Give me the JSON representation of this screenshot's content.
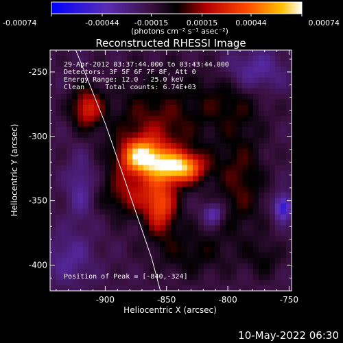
{
  "chart_data": {
    "type": "heatmap",
    "title": "Reconstructed RHESSI Image",
    "xlabel": "Heliocentric X (arcsec)",
    "ylabel": "Heliocentric Y (arcsec)",
    "xlim": [
      -945,
      -748
    ],
    "ylim": [
      -420,
      -233
    ],
    "xticks": [
      -900,
      -850,
      -800,
      -750
    ],
    "xtick_labels": [
      "-900",
      "-850",
      "-800",
      "-750"
    ],
    "yticks": [
      -250,
      -300,
      -350,
      -400
    ],
    "ytick_labels": [
      "-250",
      "-300",
      "-350",
      "-400"
    ],
    "colorbar": {
      "ticks": [
        -0.00074,
        -0.00044,
        -0.00015,
        0.00015,
        0.00044,
        0.00074
      ],
      "tick_labels": [
        "-0.00074",
        "-0.00044",
        "-0.00015",
        "0.00015",
        "0.00044",
        "0.00074"
      ],
      "unit_label": "(photons cm⁻² s⁻¹ asec⁻²)",
      "range": [
        -0.00074,
        0.00074
      ]
    },
    "annotations": [
      "29-Apr-2012 03:37:44.000 to 03:43:44.000",
      "Detectors: 3F 5F 6F 7F 8F, Att 0",
      "Energy Range: 12.0 - 25.0 keV",
      "Clean     Total counts: 6.74E+03"
    ],
    "peak_label": "Position of Peak = [-840,-324]",
    "peak": [
      -840,
      -324
    ],
    "blobs": [
      {
        "x": -915,
        "y": -278,
        "sx": 9,
        "sy": 11,
        "v": 0.00042
      },
      {
        "x": -870,
        "y": -316,
        "sx": 12,
        "sy": 9,
        "v": 0.0007
      },
      {
        "x": -840,
        "y": -324,
        "sx": 14,
        "sy": 8,
        "v": 0.00074
      },
      {
        "x": -860,
        "y": -300,
        "sx": 25,
        "sy": 30,
        "v": 0.00028
      },
      {
        "x": -855,
        "y": -355,
        "sx": 9,
        "sy": 15,
        "v": 0.00045
      },
      {
        "x": -880,
        "y": -345,
        "sx": 16,
        "sy": 12,
        "v": 0.00026
      },
      {
        "x": -790,
        "y": -335,
        "sx": 14,
        "sy": 30,
        "v": 0.00022
      },
      {
        "x": -800,
        "y": -270,
        "sx": 22,
        "sy": 18,
        "v": 0.00018
      },
      {
        "x": -830,
        "y": -390,
        "sx": 22,
        "sy": 14,
        "v": 0.00016
      },
      {
        "x": -770,
        "y": -395,
        "sx": 10,
        "sy": 10,
        "v": 0.00014
      },
      {
        "x": -920,
        "y": -340,
        "sx": 8,
        "sy": 18,
        "v": -0.0002
      },
      {
        "x": -780,
        "y": -250,
        "sx": 18,
        "sy": 12,
        "v": -0.00025
      },
      {
        "x": -930,
        "y": -395,
        "sx": 14,
        "sy": 14,
        "v": -0.00018
      },
      {
        "x": -812,
        "y": -360,
        "sx": 6,
        "sy": 6,
        "v": -0.0003
      },
      {
        "x": -755,
        "y": -355,
        "sx": 5,
        "sy": 7,
        "v": -0.00044
      }
    ],
    "limb_line": [
      [
        -924,
        -233
      ],
      [
        -900,
        -290
      ],
      [
        -880,
        -345
      ],
      [
        -862,
        -395
      ],
      [
        -855,
        -420
      ]
    ]
  },
  "footer": {
    "timestamp": "10-May-2022 06:30"
  },
  "colors": {
    "background": "#000000",
    "limb_line": "#ffffff",
    "colormap": [
      "#0000ff",
      "#5a2db4",
      "#7b2a88",
      "#000000",
      "#c80000",
      "#ff5a00",
      "#ffc800",
      "#ffffff"
    ]
  }
}
